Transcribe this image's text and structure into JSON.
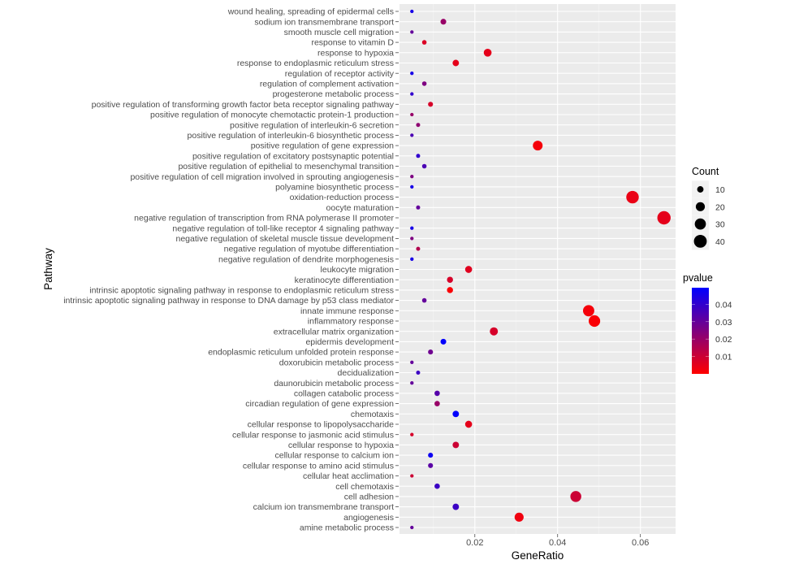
{
  "chart_data": {
    "type": "scatter",
    "xlabel": "GeneRatio",
    "ylabel": "Pathway",
    "xlim": [
      0.0018,
      0.0685
    ],
    "xticks": [
      0.02,
      0.04,
      0.06
    ],
    "grid": true,
    "size_legend": {
      "title": "Count",
      "values": [
        10,
        20,
        30,
        40
      ]
    },
    "color_legend": {
      "title": "pvalue",
      "ticks": [
        0.04,
        0.03,
        0.02,
        0.01
      ],
      "range": [
        0.0,
        0.0495
      ],
      "low_color": "#FF0000",
      "high_color": "#0000FF"
    },
    "legend_position": "right",
    "points": [
      {
        "pathway": "wound healing, spreading of epidermal cells",
        "generatio": 0.0048,
        "count": 3,
        "pvalue": 0.045
      },
      {
        "pathway": "sodium ion transmembrane transport",
        "generatio": 0.0124,
        "count": 8,
        "pvalue": 0.02
      },
      {
        "pathway": "smooth muscle cell migration",
        "generatio": 0.0048,
        "count": 3,
        "pvalue": 0.03
      },
      {
        "pathway": "response to vitamin D",
        "generatio": 0.0078,
        "count": 5,
        "pvalue": 0.007
      },
      {
        "pathway": "response to hypoxia",
        "generatio": 0.0231,
        "count": 15,
        "pvalue": 0.005
      },
      {
        "pathway": "response to endoplasmic reticulum stress",
        "generatio": 0.0154,
        "count": 10,
        "pvalue": 0.005
      },
      {
        "pathway": "regulation of receptor activity",
        "generatio": 0.0048,
        "count": 3,
        "pvalue": 0.045
      },
      {
        "pathway": "regulation of complement activation",
        "generatio": 0.0078,
        "count": 5,
        "pvalue": 0.025
      },
      {
        "pathway": "progesterone metabolic process",
        "generatio": 0.0048,
        "count": 3,
        "pvalue": 0.04
      },
      {
        "pathway": "positive regulation of transforming growth factor beta receptor signaling pathway",
        "generatio": 0.0093,
        "count": 6,
        "pvalue": 0.008
      },
      {
        "pathway": "positive regulation of monocyte chemotactic protein-1 production",
        "generatio": 0.0048,
        "count": 3,
        "pvalue": 0.02
      },
      {
        "pathway": "positive regulation of interleukin-6 secretion",
        "generatio": 0.0063,
        "count": 4,
        "pvalue": 0.022
      },
      {
        "pathway": "positive regulation of interleukin-6 biosynthetic process",
        "generatio": 0.0048,
        "count": 3,
        "pvalue": 0.035
      },
      {
        "pathway": "positive regulation of gene expression",
        "generatio": 0.0352,
        "count": 23,
        "pvalue": 0.002
      },
      {
        "pathway": "positive regulation of excitatory postsynaptic potential",
        "generatio": 0.0063,
        "count": 4,
        "pvalue": 0.04
      },
      {
        "pathway": "positive regulation of epithelial to mesenchymal transition",
        "generatio": 0.0078,
        "count": 5,
        "pvalue": 0.035
      },
      {
        "pathway": "positive regulation of cell migration involved in sprouting angiogenesis",
        "generatio": 0.0048,
        "count": 3,
        "pvalue": 0.025
      },
      {
        "pathway": "polyamine biosynthetic process",
        "generatio": 0.0048,
        "count": 3,
        "pvalue": 0.045
      },
      {
        "pathway": "oxidation-reduction process",
        "generatio": 0.0581,
        "count": 38,
        "pvalue": 0.004
      },
      {
        "pathway": "oocyte maturation",
        "generatio": 0.0063,
        "count": 4,
        "pvalue": 0.03
      },
      {
        "pathway": "negative regulation of transcription from RNA polymerase II promoter",
        "generatio": 0.0657,
        "count": 43,
        "pvalue": 0.005
      },
      {
        "pathway": "negative regulation of toll-like receptor 4 signaling pathway",
        "generatio": 0.0048,
        "count": 3,
        "pvalue": 0.045
      },
      {
        "pathway": "negative regulation of skeletal muscle tissue development",
        "generatio": 0.0048,
        "count": 3,
        "pvalue": 0.025
      },
      {
        "pathway": "negative regulation of myotube differentiation",
        "generatio": 0.0063,
        "count": 4,
        "pvalue": 0.015
      },
      {
        "pathway": "negative regulation of dendrite morphogenesis",
        "generatio": 0.0048,
        "count": 3,
        "pvalue": 0.045
      },
      {
        "pathway": "leukocyte migration",
        "generatio": 0.0185,
        "count": 12,
        "pvalue": 0.006
      },
      {
        "pathway": "keratinocyte differentiation",
        "generatio": 0.014,
        "count": 9,
        "pvalue": 0.008
      },
      {
        "pathway": "intrinsic apoptotic signaling pathway in response to endoplasmic reticulum stress",
        "generatio": 0.014,
        "count": 9,
        "pvalue": 0.001
      },
      {
        "pathway": "intrinsic apoptotic signaling pathway in response to DNA damage by p53 class mediator",
        "generatio": 0.0078,
        "count": 5,
        "pvalue": 0.03
      },
      {
        "pathway": "innate immune response",
        "generatio": 0.0475,
        "count": 31,
        "pvalue": 0.002
      },
      {
        "pathway": "inflammatory response",
        "generatio": 0.0489,
        "count": 32,
        "pvalue": 0.001
      },
      {
        "pathway": "extracellular matrix organization",
        "generatio": 0.0246,
        "count": 16,
        "pvalue": 0.008
      },
      {
        "pathway": "epidermis development",
        "generatio": 0.0124,
        "count": 8,
        "pvalue": 0.049
      },
      {
        "pathway": "endoplasmic reticulum unfolded protein response",
        "generatio": 0.0093,
        "count": 6,
        "pvalue": 0.028
      },
      {
        "pathway": "doxorubicin metabolic process",
        "generatio": 0.0048,
        "count": 3,
        "pvalue": 0.03
      },
      {
        "pathway": "decidualization",
        "generatio": 0.0063,
        "count": 4,
        "pvalue": 0.038
      },
      {
        "pathway": "daunorubicin metabolic process",
        "generatio": 0.0048,
        "count": 3,
        "pvalue": 0.03
      },
      {
        "pathway": "collagen catabolic process",
        "generatio": 0.0109,
        "count": 7,
        "pvalue": 0.033
      },
      {
        "pathway": "circadian regulation of gene expression",
        "generatio": 0.0109,
        "count": 7,
        "pvalue": 0.02
      },
      {
        "pathway": "chemotaxis",
        "generatio": 0.0154,
        "count": 10,
        "pvalue": 0.049
      },
      {
        "pathway": "cellular response to lipopolysaccharide",
        "generatio": 0.0185,
        "count": 12,
        "pvalue": 0.005
      },
      {
        "pathway": "cellular response to jasmonic acid stimulus",
        "generatio": 0.0048,
        "count": 3,
        "pvalue": 0.008
      },
      {
        "pathway": "cellular response to hypoxia",
        "generatio": 0.0154,
        "count": 10,
        "pvalue": 0.01
      },
      {
        "pathway": "cellular response to calcium ion",
        "generatio": 0.0093,
        "count": 6,
        "pvalue": 0.047
      },
      {
        "pathway": "cellular response to amino acid stimulus",
        "generatio": 0.0093,
        "count": 6,
        "pvalue": 0.032
      },
      {
        "pathway": "cellular heat acclimation",
        "generatio": 0.0048,
        "count": 3,
        "pvalue": 0.01
      },
      {
        "pathway": "cell chemotaxis",
        "generatio": 0.0109,
        "count": 7,
        "pvalue": 0.038
      },
      {
        "pathway": "cell adhesion",
        "generatio": 0.0444,
        "count": 29,
        "pvalue": 0.01
      },
      {
        "pathway": "calcium ion transmembrane transport",
        "generatio": 0.0154,
        "count": 10,
        "pvalue": 0.038
      },
      {
        "pathway": "angiogenesis",
        "generatio": 0.0307,
        "count": 20,
        "pvalue": 0.003
      },
      {
        "pathway": "amine metabolic process",
        "generatio": 0.0048,
        "count": 3,
        "pvalue": 0.03
      }
    ]
  }
}
